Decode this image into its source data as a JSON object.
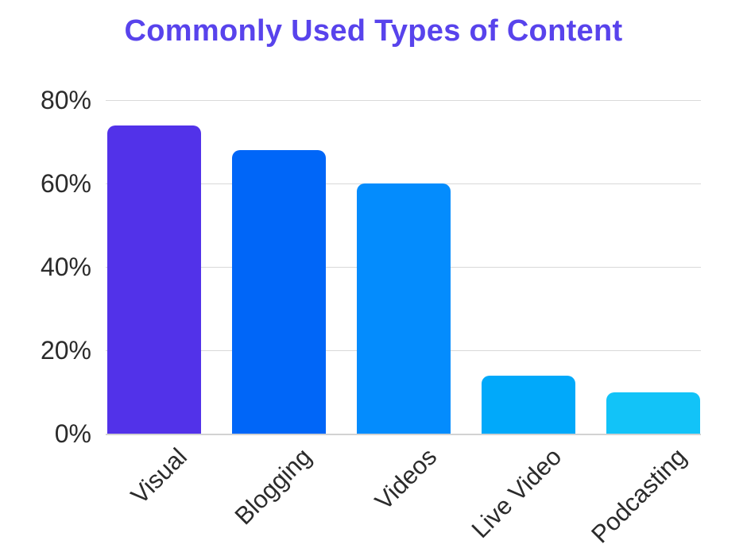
{
  "header": {
    "title": "Commonly Used Types of Content",
    "title_color": "#5843ec"
  },
  "chart_data": {
    "type": "bar",
    "title": "Commonly Used Types of Content",
    "categories": [
      "Visual",
      "Blogging",
      "Videos",
      "Live Video",
      "Podcasting"
    ],
    "values": [
      74,
      68,
      60,
      14,
      10
    ],
    "unit": "%",
    "bar_colors": [
      "#5232e9",
      "#0066f8",
      "#048cfd",
      "#01a9fa",
      "#12c3f8"
    ],
    "y_ticks": [
      {
        "value": 0,
        "label": "0%"
      },
      {
        "value": 20,
        "label": "20%"
      },
      {
        "value": 40,
        "label": "40%"
      },
      {
        "value": 60,
        "label": "60%"
      },
      {
        "value": 80,
        "label": "80%"
      }
    ],
    "ylim": [
      0,
      80
    ],
    "grid": true,
    "gridline_color": "#d9d9d9",
    "baseline_color": "#d2d2d2",
    "axis_text_color": "#2b2b2b",
    "legend": "none",
    "xlabel": "",
    "ylabel": ""
  }
}
